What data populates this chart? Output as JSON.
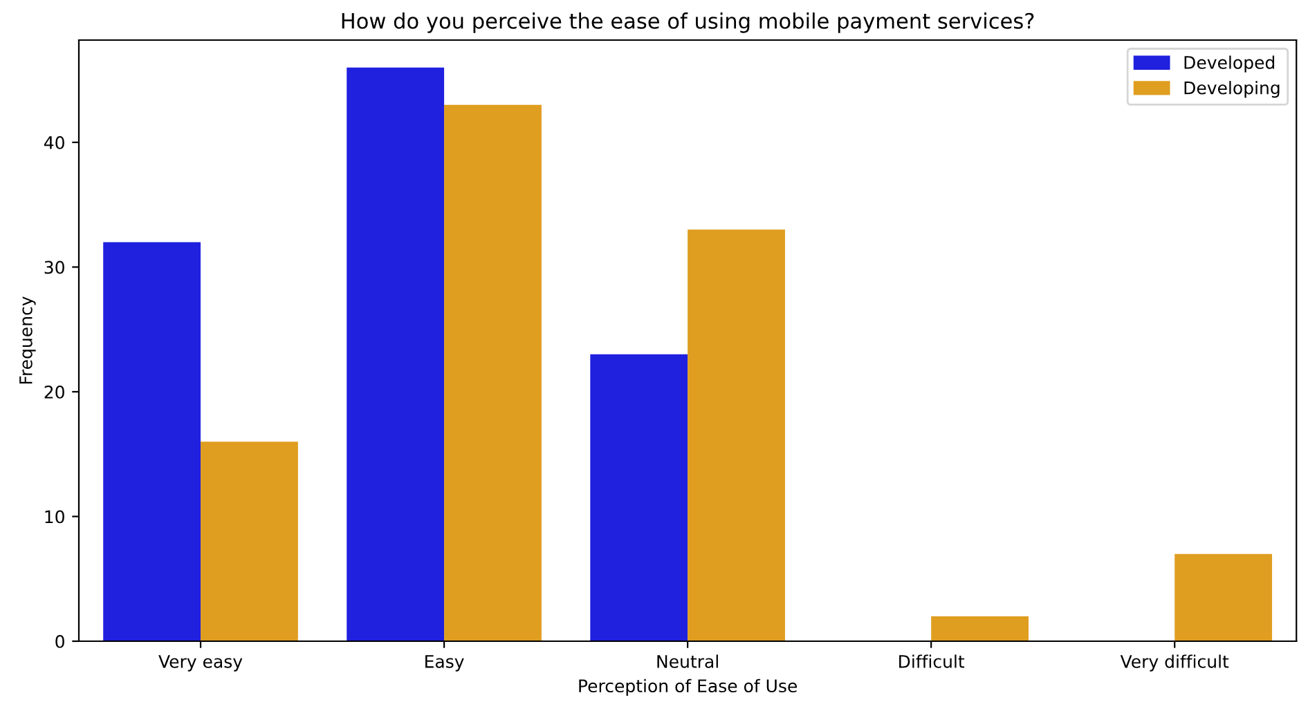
{
  "chart_data": {
    "type": "bar",
    "title": "How do you perceive the ease of using mobile payment services?",
    "xlabel": "Perception of Ease of Use",
    "ylabel": "Frequency",
    "categories": [
      "Very easy",
      "Easy",
      "Neutral",
      "Difficult",
      "Very difficult"
    ],
    "series": [
      {
        "name": "Developed",
        "color": "#2020df",
        "values": [
          32,
          46,
          23,
          null,
          null
        ]
      },
      {
        "name": "Developing",
        "color": "#df9e20",
        "values": [
          16,
          43,
          33,
          2,
          7
        ]
      }
    ],
    "ylim": [
      0,
      48.2
    ],
    "yticks": [
      0,
      10,
      20,
      30,
      40
    ],
    "legend": "top right",
    "grid": false
  }
}
